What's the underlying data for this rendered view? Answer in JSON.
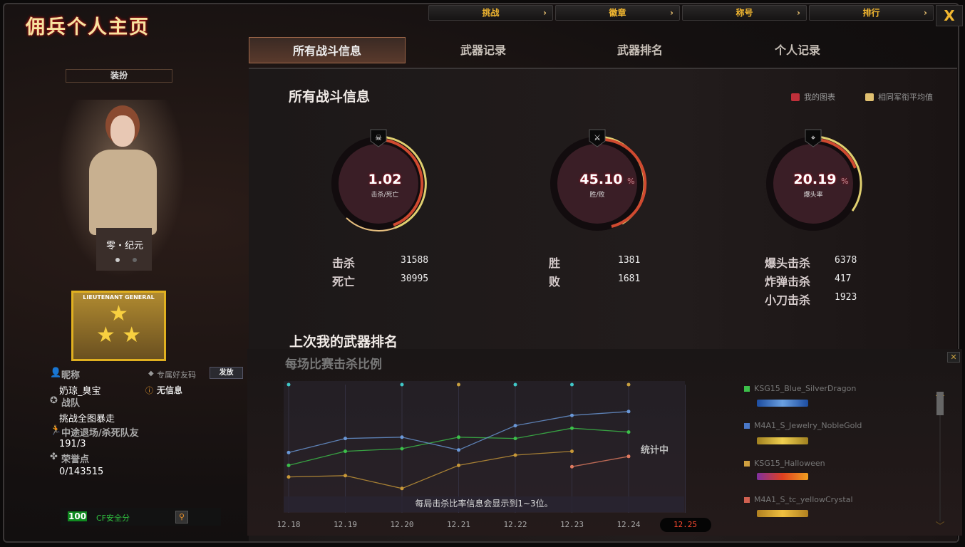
{
  "window": {
    "title": "佣兵个人主页",
    "close_label": "X"
  },
  "top_buttons": [
    {
      "label": "挑战"
    },
    {
      "label": "徽章"
    },
    {
      "label": "称号"
    },
    {
      "label": "排行"
    }
  ],
  "tabs": [
    {
      "label": "所有战斗信息",
      "active": true
    },
    {
      "label": "武器记录"
    },
    {
      "label": "武器排名"
    },
    {
      "label": "个人记录"
    }
  ],
  "left": {
    "dress_button": "装扮",
    "character_name": "零・纪元",
    "rank_badge": "LIEUTENANT GENERAL",
    "nickname_label": "昵称",
    "nickname": "奶琼_臭宝",
    "friend_code_label": "专属好友码",
    "friend_code_button": "发放",
    "friend_code_value": "无信息",
    "clan_label": "战队",
    "clan": "挑战全图暴走",
    "quit_label": "中途退场/杀死队友",
    "quit_value": "191/3",
    "honor_label": "荣誉点",
    "honor_value": "0/143515",
    "security_score": "100",
    "security_label": "CF安全分"
  },
  "overview": {
    "title": "所有战斗信息",
    "legend": [
      {
        "label": "我的图表",
        "color": "#c0303a"
      },
      {
        "label": "相同军衔平均值",
        "color": "#e0c070"
      }
    ],
    "gauges": [
      {
        "value": "1.02",
        "unit": "",
        "label": "击杀/死亡",
        "icon": "skull-icon"
      },
      {
        "value": "45.10",
        "unit": "%",
        "label": "胜/败",
        "icon": "crossed-swords-icon"
      },
      {
        "value": "20.19",
        "unit": "%",
        "label": "爆头率",
        "icon": "headshot-rifle-icon"
      }
    ],
    "stats": [
      {
        "label": "击杀",
        "value": "31588"
      },
      {
        "label": "死亡",
        "value": "30995"
      },
      {
        "label": "胜",
        "value": "1381"
      },
      {
        "label": "败",
        "value": "1681"
      },
      {
        "label": "爆头击杀",
        "value": "6378"
      },
      {
        "label": "炸弹击杀",
        "value": "417"
      },
      {
        "label": "小刀击杀",
        "value": "1923"
      }
    ]
  },
  "weapon_rank": {
    "title": "上次我的武器排名",
    "subtitle": "每场比赛击杀比例",
    "status": "统计中",
    "note": "每局击杀比率信息会显示到1~3位。",
    "weapons": [
      {
        "name": "KSG15_Blue_SilverDragon",
        "color": "#3cc04a"
      },
      {
        "name": "M4A1_S_Jewelry_NobleGold",
        "color": "#4a78c8"
      },
      {
        "name": "KSG15_Halloween",
        "color": "#d0a040"
      },
      {
        "name": "M4A1_S_tc_yellowCrystal",
        "color": "#d06050"
      }
    ]
  },
  "chart_data": {
    "type": "line",
    "title": "每场比赛击杀比例",
    "categories": [
      "12.18",
      "12.19",
      "12.20",
      "12.21",
      "12.22",
      "12.23",
      "12.24",
      "12.25"
    ],
    "highlight_category": "12.25",
    "ylim": [
      0,
      100
    ],
    "grid": "vertical",
    "series": [
      {
        "name": "KSG15_Blue_SilverDragon",
        "color": "#3cc04a",
        "values": [
          37,
          48,
          50,
          59,
          58,
          66,
          63,
          null
        ]
      },
      {
        "name": "M4A1_S_Jewelry_NobleGold",
        "color": "#6a98d8",
        "values": [
          47,
          58,
          59,
          49,
          68,
          76,
          79,
          null
        ]
      },
      {
        "name": "KSG15_Halloween",
        "color": "#c89838",
        "values": [
          28,
          29,
          19,
          37,
          45,
          48,
          null,
          null
        ]
      },
      {
        "name": "M4A1_S_tc_yellowCrystal",
        "color": "#e07a60",
        "values": [
          null,
          null,
          null,
          null,
          null,
          36,
          44,
          null
        ]
      }
    ],
    "top_markers": [
      "#40c8c8",
      null,
      "#40c8c8",
      "#c8a040",
      "#40c8c8",
      "#40c8c8",
      "#c8a040",
      null
    ]
  }
}
